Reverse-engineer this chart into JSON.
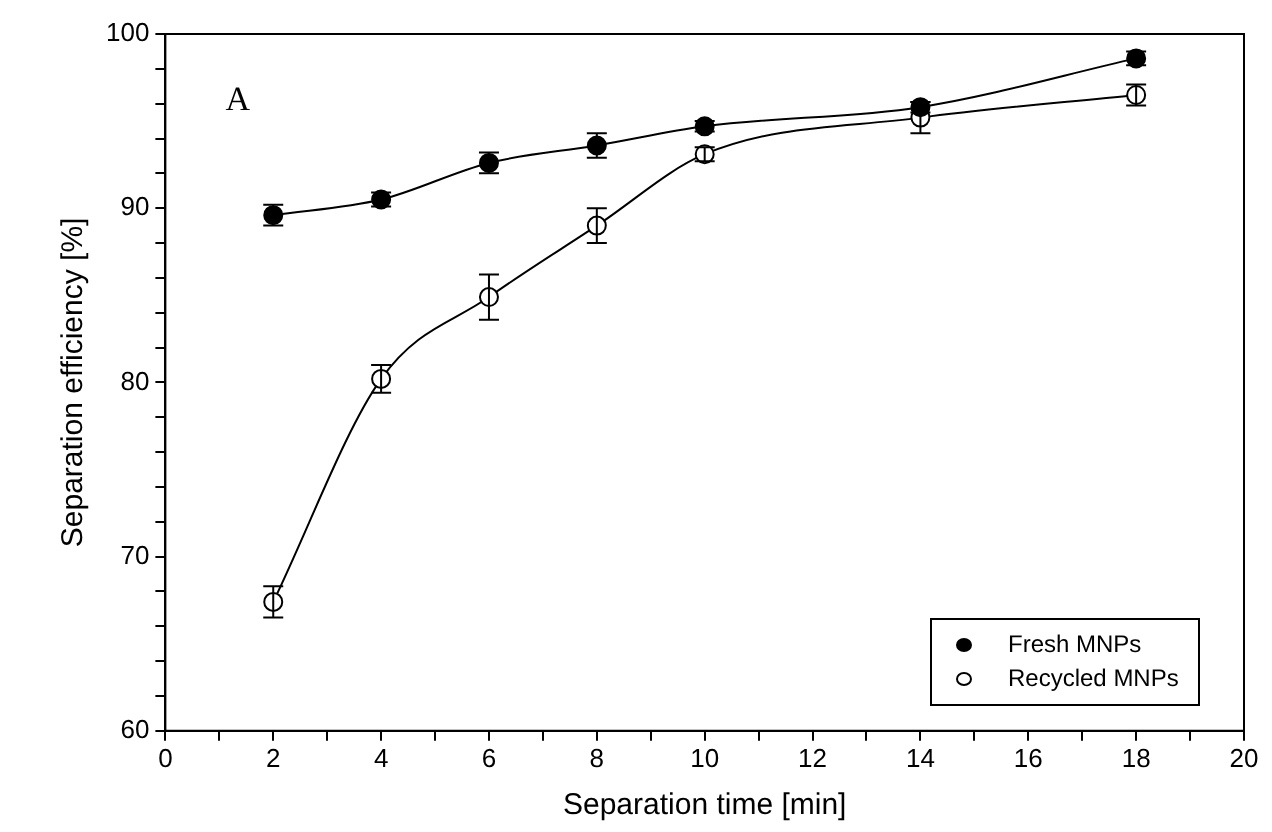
{
  "chart_data": {
    "type": "line",
    "xlabel": "Separation time [min]",
    "ylabel": "Separation efficiency [%]",
    "annotations": [
      "A"
    ],
    "x": [
      2,
      4,
      6,
      8,
      10,
      14,
      18
    ],
    "xlim": [
      0,
      20
    ],
    "xticks": [
      0,
      {
        "value": 1,
        "label": null
      },
      2,
      {
        "value": 3,
        "label": null
      },
      4,
      {
        "value": 5,
        "label": null
      },
      6,
      {
        "value": 7,
        "label": null
      },
      8,
      {
        "value": 9,
        "label": null
      },
      10,
      {
        "value": 11,
        "label": null
      },
      12,
      {
        "value": 13,
        "label": null
      },
      14,
      {
        "value": 15,
        "label": null
      },
      16,
      {
        "value": 17,
        "label": null
      },
      18,
      {
        "value": 19,
        "label": null
      },
      20
    ],
    "ylim": [
      60,
      100
    ],
    "yticks": [
      60,
      {
        "value": 62,
        "label": null
      },
      {
        "value": 64,
        "label": null
      },
      {
        "value": 66,
        "label": null
      },
      {
        "value": 68,
        "label": null
      },
      70,
      {
        "value": 72,
        "label": null
      },
      {
        "value": 74,
        "label": null
      },
      {
        "value": 76,
        "label": null
      },
      {
        "value": 78,
        "label": null
      },
      80,
      {
        "value": 82,
        "label": null
      },
      {
        "value": 84,
        "label": null
      },
      {
        "value": 86,
        "label": null
      },
      {
        "value": 88,
        "label": null
      },
      90,
      {
        "value": 92,
        "label": null
      },
      {
        "value": 94,
        "label": null
      },
      {
        "value": 96,
        "label": null
      },
      {
        "value": 98,
        "label": null
      },
      100
    ],
    "grid": false,
    "legend": "bottom right",
    "marker": "circle",
    "line_style": "solid",
    "series": [
      {
        "name": "Fresh MNPs",
        "color": "#000000",
        "values": [
          89.6,
          90.5,
          92.6,
          93.6,
          94.7,
          95.8,
          98.6
        ],
        "errors": [
          0.6,
          0.4,
          0.6,
          0.7,
          0.3,
          0.3,
          0.4
        ]
      },
      {
        "name": "Recycled MNPs",
        "color": "#ffffff",
        "values": [
          67.4,
          80.2,
          84.9,
          89.0,
          93.1,
          95.2,
          96.5
        ],
        "errors": [
          0.9,
          0.8,
          1.3,
          1.0,
          0.4,
          0.9,
          0.6
        ]
      }
    ]
  }
}
